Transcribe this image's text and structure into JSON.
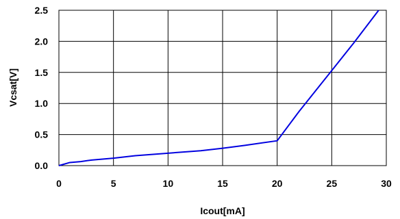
{
  "chart_data": {
    "type": "line",
    "title": "",
    "xlabel": "Icout[mA]",
    "ylabel": "Vcsat[V]",
    "xlim": [
      0,
      30
    ],
    "ylim": [
      0,
      2.5
    ],
    "x_ticks": [
      "0",
      "5",
      "10",
      "15",
      "20",
      "25",
      "30"
    ],
    "y_ticks": [
      "0.0",
      "0.5",
      "1.0",
      "1.5",
      "2.0",
      "2.5"
    ],
    "grid": true,
    "legend": "none",
    "series": [
      {
        "color": "#0000e0",
        "x": [
          0,
          1,
          2,
          3,
          5,
          7,
          10,
          13,
          15,
          17,
          20,
          22,
          25,
          27,
          29.3
        ],
        "y": [
          0,
          0.05,
          0.065,
          0.09,
          0.12,
          0.16,
          0.2,
          0.24,
          0.28,
          0.325,
          0.4,
          0.87,
          1.53,
          1.97,
          2.5
        ]
      }
    ]
  }
}
